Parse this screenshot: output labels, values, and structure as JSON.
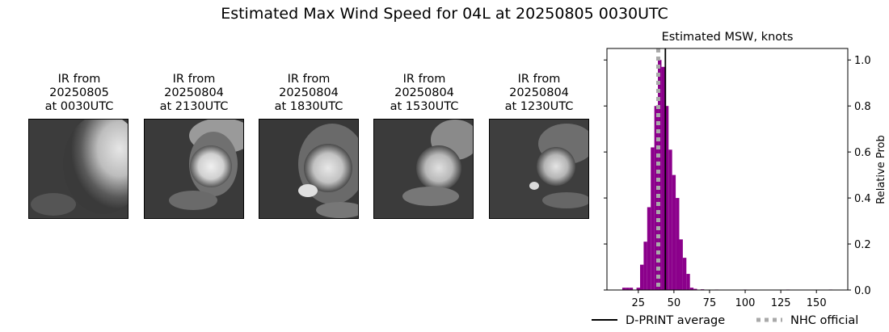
{
  "title": "Estimated Max Wind Speed for 04L at 20250805 0030UTC",
  "ir_panels": [
    {
      "line1": "IR from",
      "line2": "20250805",
      "line3": "at 0030UTC"
    },
    {
      "line1": "IR from",
      "line2": "20250804",
      "line3": "at 2130UTC"
    },
    {
      "line1": "IR from",
      "line2": "20250804",
      "line3": "at 1830UTC"
    },
    {
      "line1": "IR from",
      "line2": "20250804",
      "line3": "at 1530UTC"
    },
    {
      "line1": "IR from",
      "line2": "20250804",
      "line3": "at 1230UTC"
    }
  ],
  "chart_data": {
    "type": "bar",
    "title": "Estimated MSW, knots",
    "xlabel": "",
    "ylabel": "Relative Prob",
    "xlim": [
      3,
      172
    ],
    "ylim": [
      0,
      1.05
    ],
    "xticks": [
      25,
      50,
      75,
      100,
      125,
      150
    ],
    "yticks": [
      0.0,
      0.2,
      0.4,
      0.6,
      0.8,
      1.0
    ],
    "bin_width": 2.5,
    "bins": [
      {
        "x": 15,
        "y": 0.01
      },
      {
        "x": 17.5,
        "y": 0.01
      },
      {
        "x": 20,
        "y": 0.01
      },
      {
        "x": 25,
        "y": 0.01
      },
      {
        "x": 27.5,
        "y": 0.11
      },
      {
        "x": 30,
        "y": 0.21
      },
      {
        "x": 32.5,
        "y": 0.36
      },
      {
        "x": 35,
        "y": 0.62
      },
      {
        "x": 37.5,
        "y": 0.8
      },
      {
        "x": 40,
        "y": 1.0
      },
      {
        "x": 42.5,
        "y": 0.97
      },
      {
        "x": 45,
        "y": 0.8
      },
      {
        "x": 47.5,
        "y": 0.61
      },
      {
        "x": 50,
        "y": 0.5
      },
      {
        "x": 52.5,
        "y": 0.4
      },
      {
        "x": 55,
        "y": 0.22
      },
      {
        "x": 57.5,
        "y": 0.14
      },
      {
        "x": 60,
        "y": 0.07
      },
      {
        "x": 62.5,
        "y": 0.01
      },
      {
        "x": 65,
        "y": 0.005
      },
      {
        "x": 70,
        "y": 0.003
      },
      {
        "x": 80,
        "y": 0.002
      },
      {
        "x": 100,
        "y": 0.002
      },
      {
        "x": 130,
        "y": 0.002
      },
      {
        "x": 160,
        "y": 0.002
      }
    ],
    "bar_color": "#8b008b",
    "lines": [
      {
        "name": "D-PRINT average",
        "x": 44,
        "color": "#000000",
        "style": "solid"
      },
      {
        "name": "NHC official",
        "x": 39,
        "color": "#a9a9a9",
        "style": "dotted"
      }
    ],
    "legend_position": "bottom"
  }
}
